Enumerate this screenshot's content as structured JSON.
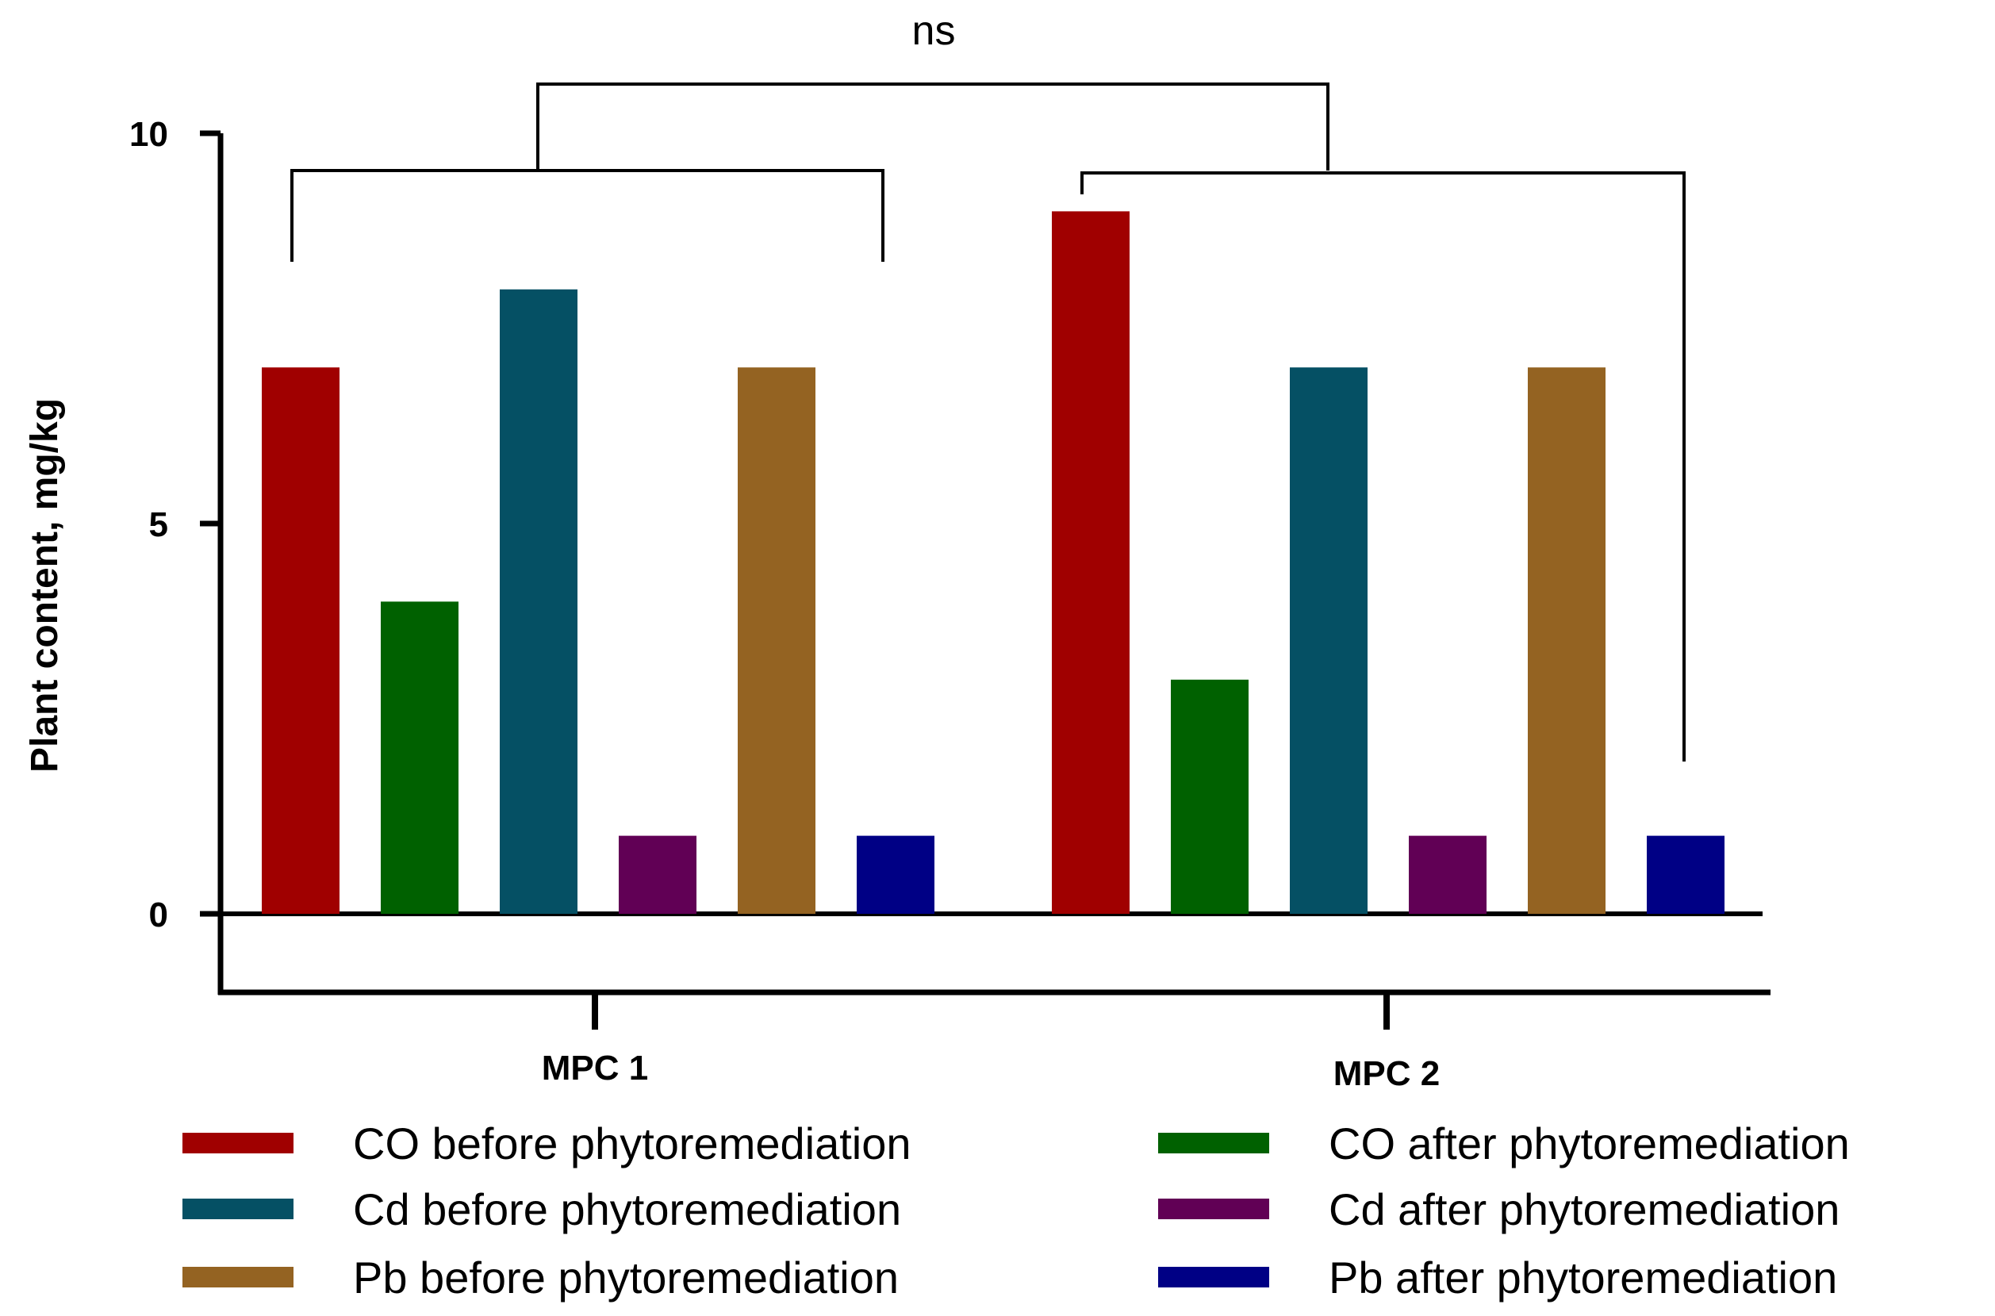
{
  "chart_data": {
    "type": "bar",
    "ylabel": "Plant content, mg/kg",
    "xlabel": "",
    "ylim": [
      -1,
      10
    ],
    "yticks": [
      0,
      5,
      10
    ],
    "categories": [
      "MPC 1",
      "MPC 2"
    ],
    "series": [
      {
        "name": "CO before phytoremediation",
        "color": "#a00000",
        "values": [
          7,
          9
        ]
      },
      {
        "name": "CO after phytoremediation",
        "color": "#006100",
        "values": [
          4,
          3
        ]
      },
      {
        "name": "Cd before phytoremediation",
        "color": "#055064",
        "values": [
          8,
          7
        ]
      },
      {
        "name": "Cd after phytoremediation",
        "color": "#610055",
        "values": [
          1,
          1
        ]
      },
      {
        "name": "Pb before phytoremediation",
        "color": "#946322",
        "values": [
          7,
          7
        ]
      },
      {
        "name": "Pb after phytoremediation",
        "color": "#000085",
        "values": [
          1,
          1
        ]
      }
    ],
    "significance": {
      "label": "ns",
      "between": [
        "MPC 1",
        "MPC 2"
      ]
    },
    "legend_position": "bottom"
  }
}
